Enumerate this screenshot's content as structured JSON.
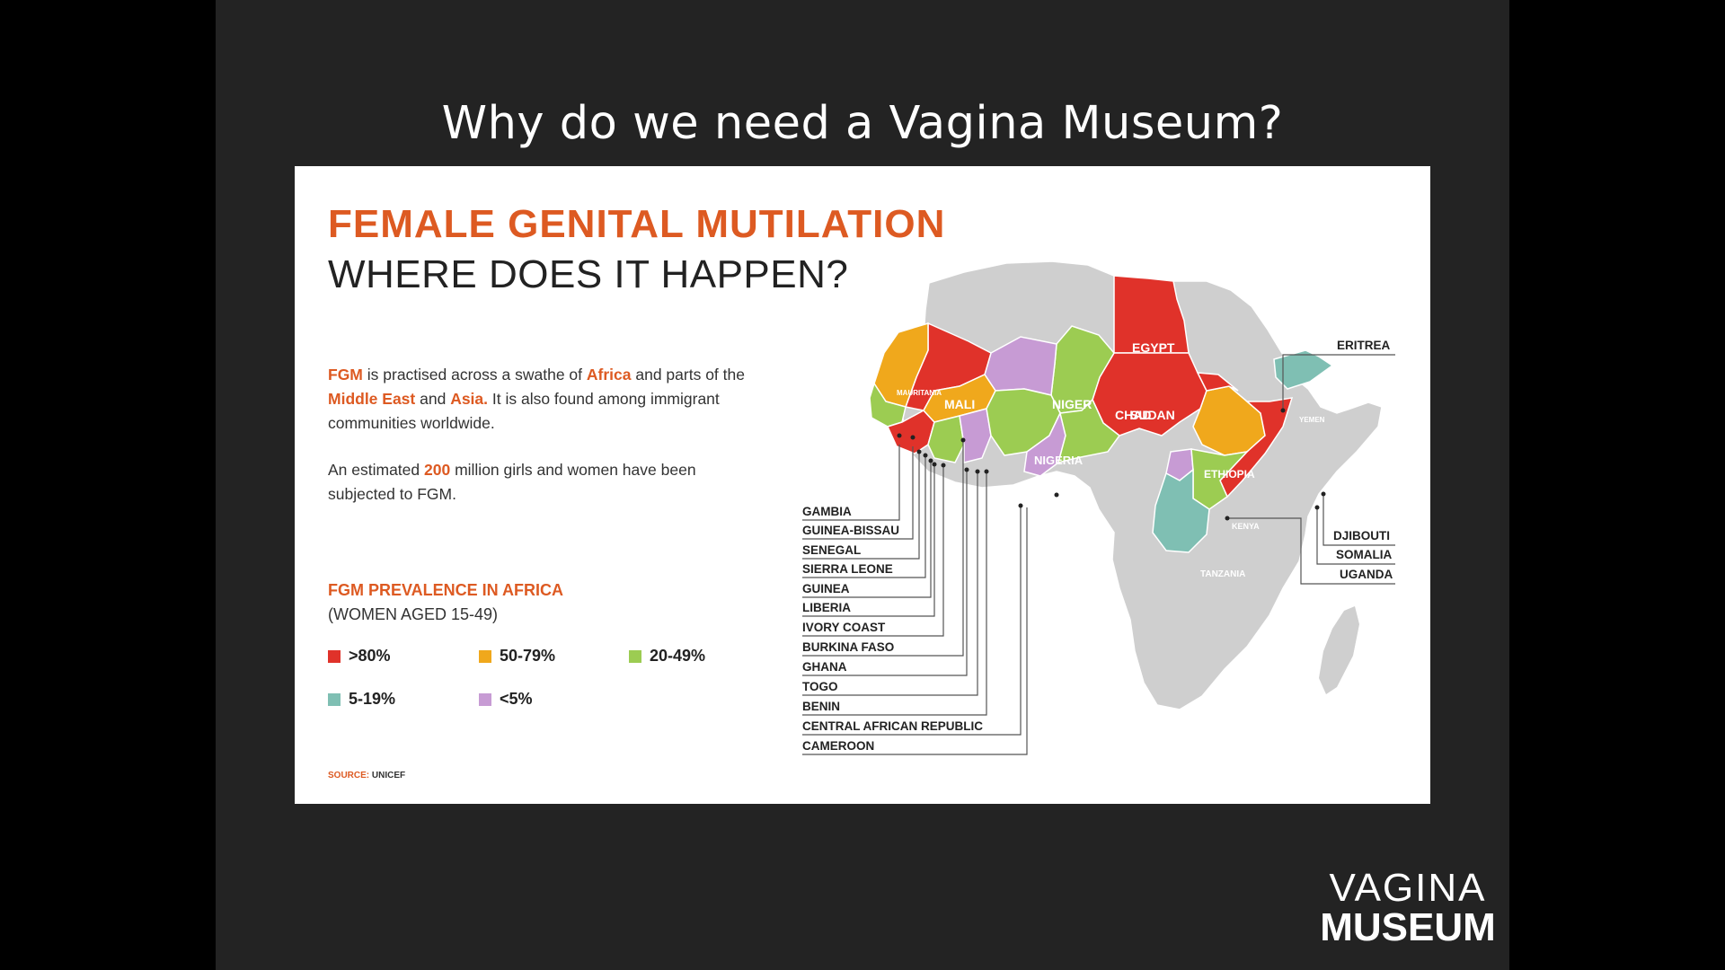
{
  "slide": {
    "title": "Why do we need a Vagina Museum?"
  },
  "infographic": {
    "heading": "FEMALE GENITAL MUTILATION",
    "subheading": "WHERE DOES IT HAPPEN?",
    "para1": {
      "p1": "FGM",
      "p2": " is practised across a swathe of ",
      "p3": "Africa",
      "p4": " and parts of the ",
      "p5": "Middle East",
      "p6": " and ",
      "p7": "Asia.",
      "p8": " It is also found among immigrant communities worldwide."
    },
    "para2": {
      "p1": "An estimated ",
      "p2": "200",
      "p3": " million girls and women have been subjected to FGM."
    },
    "legend": {
      "title": "FGM PREVALENCE IN AFRICA",
      "subtitle": "(WOMEN AGED 15-49)",
      "items": [
        {
          "label": ">80%",
          "color": "#e0322a"
        },
        {
          "label": "50-79%",
          "color": "#f0a81c"
        },
        {
          "label": "20-49%",
          "color": "#9ccc52"
        },
        {
          "label": "5-19%",
          "color": "#7fbfb3"
        },
        {
          "label": "<5%",
          "color": "#c79bd4"
        }
      ]
    },
    "source": {
      "label": "SOURCE:",
      "value": "UNICEF"
    },
    "map_labels": {
      "inside": {
        "egypt": "EGYPT",
        "sudan": "SUDAN",
        "mali": "MALI",
        "mauritania": "MAURITANIA",
        "niger": "NIGER",
        "chad": "CHAD",
        "nigeria": "NIGERIA",
        "ethiopia": "ETHIOPIA",
        "kenya": "KENYA",
        "tanzania": "TANZANIA",
        "yemen": "YEMEN"
      },
      "left_callouts": [
        "GAMBIA",
        "GUINEA-BISSAU",
        "SENEGAL",
        "SIERRA LEONE",
        "GUINEA",
        "LIBERIA",
        "IVORY COAST",
        "BURKINA FASO",
        "GHANA",
        "TOGO",
        "BENIN",
        "CENTRAL AFRICAN REPUBLIC",
        "CAMEROON"
      ],
      "right_callouts": {
        "eritrea": "ERITREA",
        "djibouti": "DJIBOUTI",
        "somalia": "SOMALIA",
        "uganda": "UGANDA"
      }
    }
  },
  "logo": {
    "line1": "VAGINA",
    "line2": "MUSEUM"
  },
  "colors": {
    "accent": "#dd5a22",
    "above80": "#e0322a",
    "range50_79": "#f0a81c",
    "range20_49": "#9ccc52",
    "range5_19": "#7fbfb3",
    "below5": "#c79bd4",
    "no_data": "#cfcfcf"
  }
}
